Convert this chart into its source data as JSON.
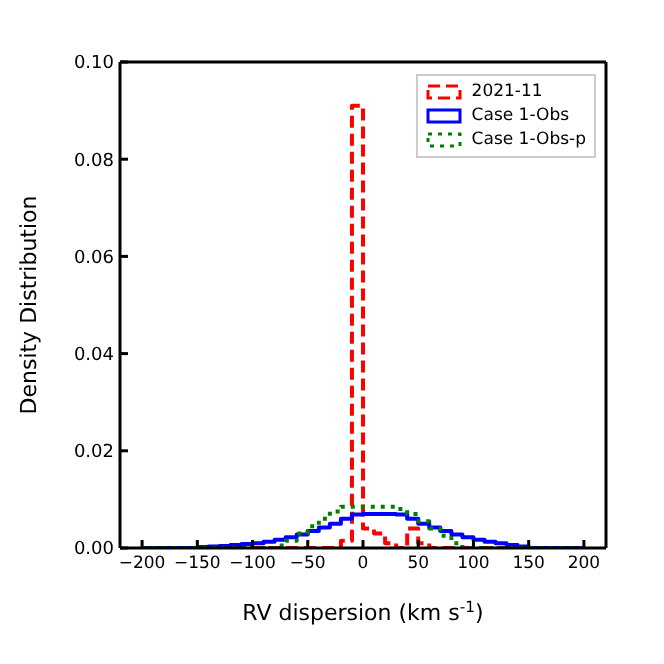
{
  "chart_data": {
    "type": "histogram",
    "xlabel": "RV dispersion (km s$^{-1}$)",
    "ylabel": "Density Distribution",
    "bins": [
      -200,
      -190,
      -180,
      -170,
      -160,
      -150,
      -140,
      -130,
      -120,
      -110,
      -100,
      -90,
      -80,
      -70,
      -60,
      -50,
      -40,
      -30,
      -20,
      -10,
      0,
      10,
      20,
      30,
      40,
      50,
      60,
      70,
      80,
      90,
      100,
      110,
      120,
      130,
      140,
      150,
      160,
      170,
      180,
      190,
      200
    ],
    "series": [
      {
        "name": "2021-11",
        "color": "#ff0000",
        "line_style": "dashed",
        "values": [
          0,
          0,
          0,
          0,
          0,
          0,
          0,
          0,
          0,
          0,
          0,
          0,
          0,
          0,
          0,
          0,
          0,
          0,
          0.0015,
          0.091,
          0.004,
          0.003,
          0.001,
          0,
          0.004,
          0.001,
          0,
          0,
          0,
          0,
          0,
          0,
          0,
          0,
          0,
          0,
          0,
          0,
          0,
          0
        ]
      },
      {
        "name": "Case 1-Obs",
        "color": "#0000ff",
        "line_style": "solid",
        "values": [
          0,
          0,
          0,
          0,
          0,
          0.0002,
          0.0003,
          0.0004,
          0.0006,
          0.0008,
          0.001,
          0.0013,
          0.0017,
          0.0022,
          0.0028,
          0.0035,
          0.0042,
          0.005,
          0.006,
          0.0069,
          0.007,
          0.007,
          0.007,
          0.0069,
          0.006,
          0.005,
          0.0042,
          0.0035,
          0.0028,
          0.0022,
          0.0017,
          0.0013,
          0.001,
          0.0006,
          0.0003,
          0,
          0,
          0,
          0,
          0
        ]
      },
      {
        "name": "Case 1-Obs-p",
        "color": "#008000",
        "line_style": "dotted",
        "values": [
          0,
          0,
          0,
          0,
          0,
          0,
          0,
          0,
          0,
          0,
          0,
          0,
          0.0005,
          0.0015,
          0.003,
          0.0045,
          0.006,
          0.0075,
          0.0085,
          0.0085,
          0.0085,
          0.0085,
          0.0085,
          0.008,
          0.007,
          0.0055,
          0.004,
          0.0025,
          0.001,
          0,
          0,
          0,
          0,
          0,
          0,
          0,
          0,
          0,
          0,
          0
        ]
      }
    ],
    "xlim": [
      -220,
      220
    ],
    "xticks": [
      -200,
      -150,
      -100,
      -50,
      0,
      50,
      100,
      150,
      200
    ],
    "ylim": [
      0,
      0.1
    ],
    "yticks": [
      {
        "value": 0,
        "label": "0.00"
      },
      {
        "value": 0.02,
        "label": "0.02"
      },
      {
        "value": 0.04,
        "label": "0.04"
      },
      {
        "value": 0.06,
        "label": "0.06"
      },
      {
        "value": 0.08,
        "label": "0.08"
      },
      {
        "value": 0.1,
        "label": "0.10"
      }
    ],
    "legend": "top right",
    "grid": false
  }
}
